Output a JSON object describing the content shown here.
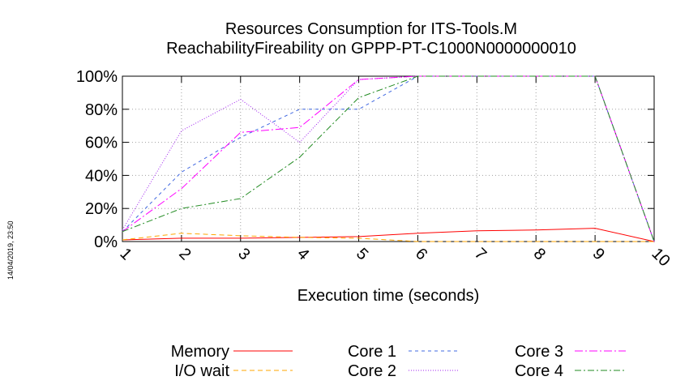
{
  "chart_data": {
    "type": "line",
    "title_line1": "Resources Consumption for ITS-Tools.M",
    "title_line2": "ReachabilityFireability on GPPP-PT-C1000N0000000010",
    "xlabel": "Execution time (seconds)",
    "ylabel": "",
    "timestamp": "14/04/2019, 23:50",
    "x": [
      1,
      2,
      3,
      4,
      5,
      6,
      7,
      8,
      9,
      10
    ],
    "xlim": [
      1,
      10
    ],
    "ylim": [
      0,
      100
    ],
    "y_ticks": [
      "0%",
      "20%",
      "40%",
      "60%",
      "80%",
      "100%"
    ],
    "y_tick_values": [
      0,
      20,
      40,
      60,
      80,
      100
    ],
    "x_ticks": [
      "1",
      "2",
      "3",
      "4",
      "5",
      "6",
      "7",
      "8",
      "9",
      "10"
    ],
    "grid": true,
    "legend_position": "bottom",
    "series": [
      {
        "name": "Memory",
        "color": "#ff0000",
        "dash": "",
        "values": [
          1,
          2,
          2,
          2.5,
          3,
          5,
          6.5,
          7,
          8,
          0
        ]
      },
      {
        "name": "I/O wait",
        "color": "#ffa500",
        "dash": "6,4",
        "values": [
          1,
          5,
          3.5,
          2.5,
          2,
          0,
          0,
          0,
          0,
          0
        ]
      },
      {
        "name": "Core 1",
        "color": "#4169e1",
        "dash": "4,4",
        "values": [
          6,
          42,
          63,
          80,
          80,
          100,
          100,
          100,
          100,
          0
        ]
      },
      {
        "name": "Core 2",
        "color": "#a020f0",
        "dash": "1,2",
        "values": [
          7,
          67,
          86,
          60,
          98,
          100,
          100,
          100,
          100,
          0
        ]
      },
      {
        "name": "Core 3",
        "color": "#ff00ff",
        "dash": "10,3,2,3",
        "values": [
          6,
          32,
          66,
          69,
          98,
          100,
          100,
          100,
          100,
          0
        ]
      },
      {
        "name": "Core 4",
        "color": "#228b22",
        "dash": "8,3,2,3",
        "values": [
          6,
          20,
          26,
          51,
          87,
          100,
          100,
          100,
          100,
          0
        ]
      }
    ]
  }
}
